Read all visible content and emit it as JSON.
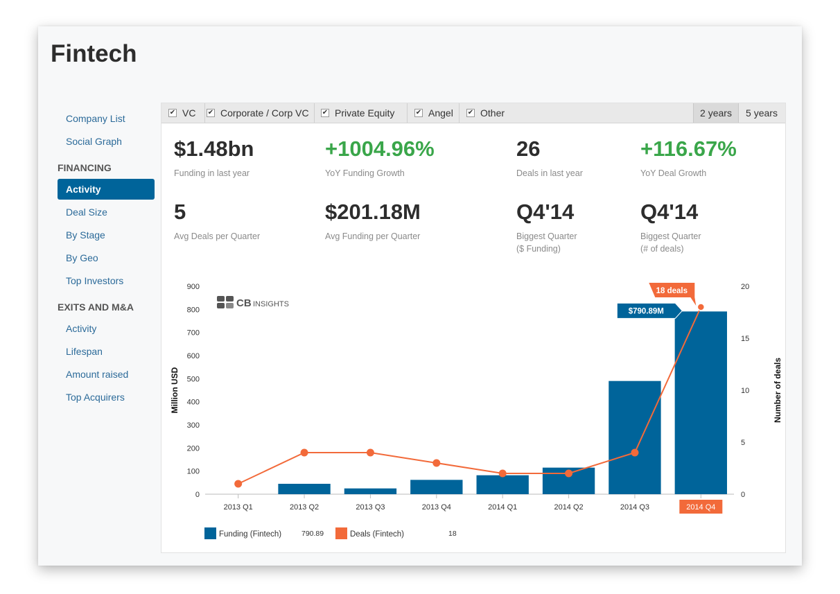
{
  "page": {
    "title": "Fintech"
  },
  "sidebar": {
    "top_items": [
      {
        "label": "Company List"
      },
      {
        "label": "Social Graph"
      }
    ],
    "financing": {
      "heading": "FINANCING",
      "items": [
        {
          "label": "Activity",
          "active": true
        },
        {
          "label": "Deal Size"
        },
        {
          "label": "By Stage"
        },
        {
          "label": "By Geo"
        },
        {
          "label": "Top Investors"
        }
      ]
    },
    "exits": {
      "heading": "EXITS AND M&A",
      "items": [
        {
          "label": "Activity"
        },
        {
          "label": "Lifespan"
        },
        {
          "label": "Amount raised"
        },
        {
          "label": "Top Acquirers"
        }
      ]
    }
  },
  "filters": [
    {
      "label": "VC",
      "checked": true
    },
    {
      "label": "Corporate / Corp VC",
      "checked": true
    },
    {
      "label": "Private Equity",
      "checked": true
    },
    {
      "label": "Angel",
      "checked": true
    },
    {
      "label": "Other",
      "checked": true
    }
  ],
  "ranges": [
    {
      "label": "2 years",
      "selected": true
    },
    {
      "label": "5 years",
      "selected": false
    }
  ],
  "stats": [
    {
      "value": "$1.48bn",
      "label": "Funding in last year",
      "color": "dark"
    },
    {
      "value": "+1004.96%",
      "label": "YoY Funding Growth",
      "color": "green"
    },
    {
      "value": "26",
      "label": "Deals in last year",
      "color": "dark"
    },
    {
      "value": "+116.67%",
      "label": "YoY Deal Growth",
      "color": "green"
    },
    {
      "value": "5",
      "label": "Avg Deals per Quarter",
      "color": "dark"
    },
    {
      "value": "$201.18M",
      "label": "Avg Funding per Quarter",
      "color": "dark"
    },
    {
      "value": "Q4'14",
      "label": "Biggest Quarter\n($ Funding)",
      "color": "dark"
    },
    {
      "value": "Q4'14",
      "label": "Biggest Quarter\n(# of deals)",
      "color": "dark"
    }
  ],
  "watermark": {
    "icon": "cb-insights-logo-icon",
    "text_bold": "CB",
    "text_light": "INSIGHTS"
  },
  "colors": {
    "funding": "#00649a",
    "deals": "#f26a3a",
    "active_nav": "#00649a",
    "growth_green": "#3aa64a"
  },
  "chart_data": {
    "type": "bar",
    "categories": [
      "2013 Q1",
      "2013 Q2",
      "2013 Q3",
      "2013 Q4",
      "2014 Q1",
      "2014 Q2",
      "2014 Q3",
      "2014 Q4"
    ],
    "series": [
      {
        "name": "Funding (Fintech)",
        "type": "bar",
        "axis": "left",
        "values": [
          0,
          45,
          25,
          62,
          82,
          115,
          490,
          790.89
        ]
      },
      {
        "name": "Deals (Fintech)",
        "type": "line",
        "axis": "right",
        "values": [
          1,
          4,
          4,
          3,
          2,
          2,
          4,
          18
        ]
      }
    ],
    "ylabel": "Million USD",
    "ylim": [
      0,
      900
    ],
    "yticks": [
      0,
      100,
      200,
      300,
      400,
      500,
      600,
      700,
      800,
      900
    ],
    "y2label": "Number of deals",
    "y2lim": [
      0,
      20
    ],
    "y2ticks": [
      0,
      5,
      10,
      15,
      20
    ],
    "highlighted_category": "2014 Q4",
    "tooltips": {
      "funding": "$790.89M",
      "deals": "18 deals"
    },
    "legend": [
      {
        "name": "Funding (Fintech)",
        "value": "790.89"
      },
      {
        "name": "Deals (Fintech)",
        "value": "18"
      }
    ],
    "legend_position": "bottom-left",
    "grid": false
  }
}
